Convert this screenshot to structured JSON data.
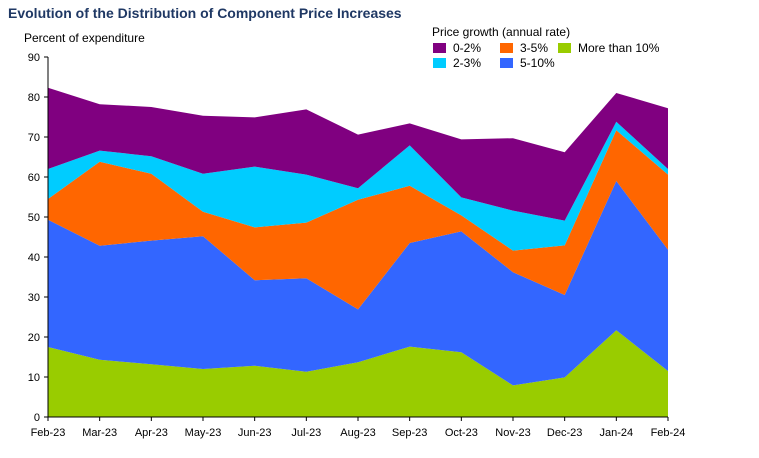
{
  "chart_data": {
    "type": "area",
    "title": "Evolution of the Distribution of Component Price Increases",
    "ylabel": "Percent of expenditure",
    "xlabel": "",
    "ylim": [
      0,
      90
    ],
    "yticks": [
      0,
      10,
      20,
      30,
      40,
      50,
      60,
      70,
      80,
      90
    ],
    "categories": [
      "Feb-23",
      "Mar-23",
      "Apr-23",
      "May-23",
      "Jun-23",
      "Jul-23",
      "Aug-23",
      "Sep-23",
      "Oct-23",
      "Nov-23",
      "Dec-23",
      "Jan-24",
      "Feb-24"
    ],
    "legend_title": "Price growth (annual rate)",
    "series": [
      {
        "name": "More than 10%",
        "color": "#99cc00",
        "values": [
          17.5,
          14.3,
          13.2,
          12.0,
          12.8,
          11.3,
          13.7,
          17.6,
          16.2,
          7.9,
          9.9,
          21.7,
          11.5
        ]
      },
      {
        "name": "5-10%",
        "color": "#3366ff",
        "values": [
          31.8,
          28.5,
          30.9,
          33.2,
          21.4,
          23.4,
          13.2,
          25.9,
          30.2,
          28.3,
          20.6,
          37.3,
          30.3
        ]
      },
      {
        "name": "3-5%",
        "color": "#ff6600",
        "values": [
          5.2,
          21.0,
          16.7,
          6.1,
          13.2,
          13.9,
          27.4,
          14.3,
          4.0,
          5.4,
          12.4,
          12.7,
          18.8
        ]
      },
      {
        "name": "2-3%",
        "color": "#00ccff",
        "values": [
          7.5,
          2.8,
          4.4,
          9.5,
          15.2,
          12.0,
          2.9,
          10.1,
          4.5,
          10.0,
          6.2,
          2.1,
          1.4
        ]
      },
      {
        "name": "0-2%",
        "color": "#800080",
        "values": [
          20.3,
          11.6,
          12.3,
          14.5,
          12.3,
          16.3,
          13.4,
          5.5,
          14.5,
          18.1,
          17.1,
          7.2,
          15.2
        ]
      }
    ],
    "legend_order": [
      "0-2%",
      "3-5%",
      "More than 10%",
      "2-3%",
      "5-10%"
    ],
    "grid": false,
    "legend_position": "top-right"
  }
}
